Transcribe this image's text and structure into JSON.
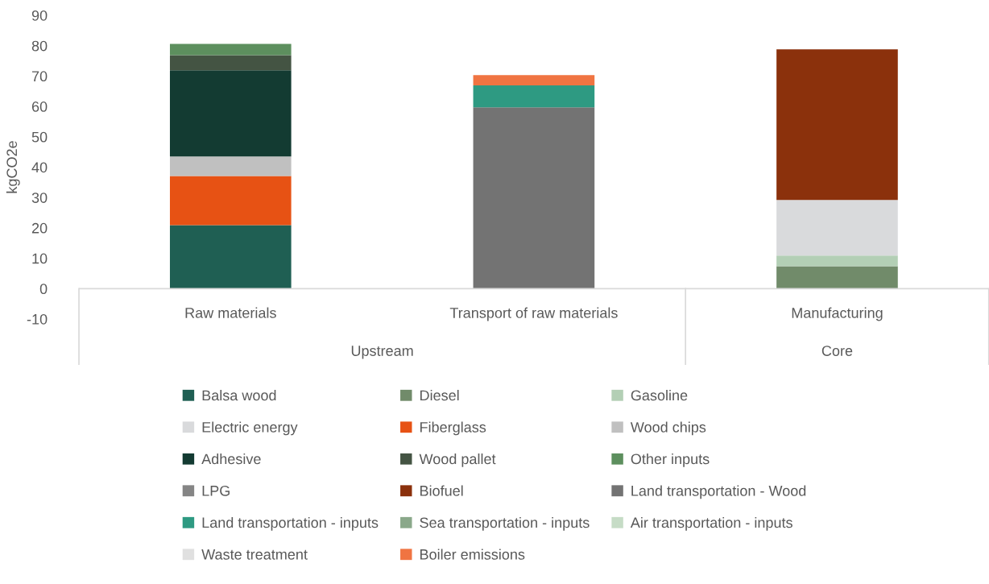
{
  "chart_data": {
    "type": "bar",
    "stacked": true,
    "ylabel": "kgCO2e",
    "categories": [
      "Raw materials",
      "Transport of raw materials",
      "Manufacturing"
    ],
    "annotations": [
      "Upstream",
      "Core"
    ],
    "ylim": [
      -10,
      90
    ],
    "yticks": [
      -10,
      0,
      10,
      20,
      30,
      40,
      50,
      60,
      70,
      80,
      90
    ],
    "grid": false,
    "legend": "bottom",
    "series": [
      {
        "name": "Balsa wood",
        "color": "#1f5f53",
        "values": [
          20.9,
          null,
          null
        ]
      },
      {
        "name": "Diesel",
        "color": "#718b6a",
        "values": [
          null,
          null,
          7.4
        ]
      },
      {
        "name": "Gasoline",
        "color": "#b3cfb5",
        "values": [
          null,
          null,
          3.5
        ]
      },
      {
        "name": "Electric energy",
        "color": "#d9dadc",
        "values": [
          null,
          null,
          18.3
        ]
      },
      {
        "name": "Fiberglass",
        "color": "#e75214",
        "values": [
          16.2,
          null,
          null
        ]
      },
      {
        "name": "Wood chips",
        "color": "#c0c0c0",
        "values": [
          6.4,
          null,
          null
        ]
      },
      {
        "name": "Adhesive",
        "color": "#133b32",
        "values": [
          28.4,
          null,
          null
        ]
      },
      {
        "name": "Wood pallet",
        "color": "#445443",
        "values": [
          5.0,
          null,
          null
        ]
      },
      {
        "name": "Other inputs",
        "color": "#5d8f5e",
        "values": [
          3.7,
          null,
          null
        ]
      },
      {
        "name": "LPG",
        "color": "#858585",
        "values": [
          null,
          null,
          null
        ]
      },
      {
        "name": "Biofuel",
        "color": "#8b310c",
        "values": [
          null,
          null,
          49.6
        ]
      },
      {
        "name": "Land transportation - Wood",
        "color": "#737373",
        "values": [
          null,
          59.7,
          null
        ]
      },
      {
        "name": "Land transportation - inputs",
        "color": "#2e9a82",
        "values": [
          null,
          7.2,
          null
        ]
      },
      {
        "name": "Sea transportation - inputs",
        "color": "#8aa88a",
        "values": [
          null,
          null,
          null
        ]
      },
      {
        "name": "Air transportation - inputs",
        "color": "#c6dcc6",
        "values": [
          null,
          null,
          null
        ]
      },
      {
        "name": "Waste treatment",
        "color": "#e0e0e0",
        "values": [
          null,
          null,
          null
        ]
      },
      {
        "name": "Boiler emissions",
        "color": "#f07442",
        "values": [
          null,
          3.4,
          null
        ]
      }
    ]
  }
}
